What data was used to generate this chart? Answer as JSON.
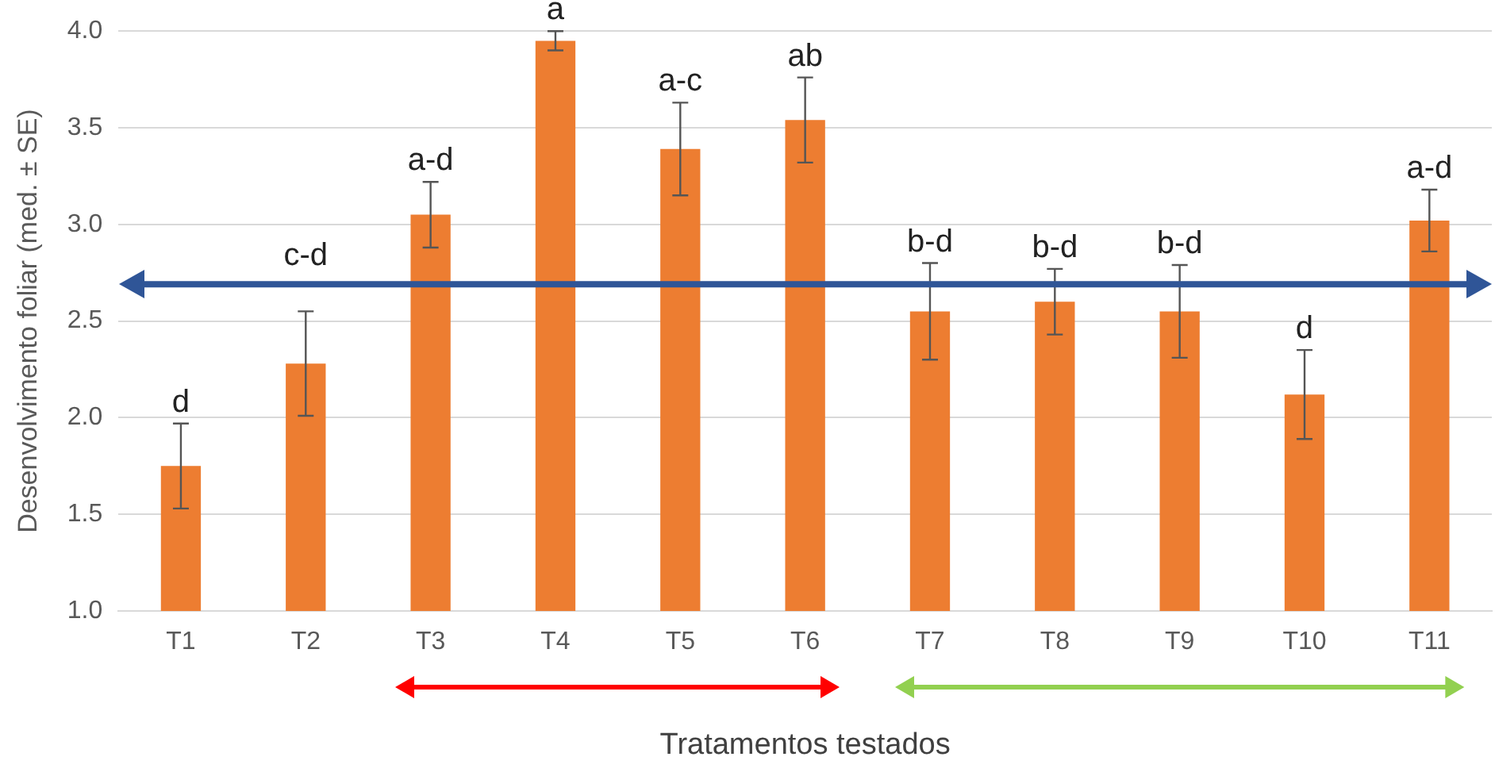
{
  "chart_data": {
    "type": "bar",
    "xlabel": "Tratamentos testados",
    "ylabel": "Desenvolvimento foliar (med. ± SE)",
    "categories": [
      "T1",
      "T2",
      "T3",
      "T4",
      "T5",
      "T6",
      "T7",
      "T8",
      "T9",
      "T10",
      "T11"
    ],
    "values": [
      1.75,
      2.28,
      3.05,
      3.95,
      3.39,
      3.54,
      2.55,
      2.6,
      2.55,
      2.12,
      3.02
    ],
    "errors": [
      0.22,
      0.27,
      0.17,
      0.05,
      0.24,
      0.22,
      0.25,
      0.17,
      0.24,
      0.23,
      0.16
    ],
    "color": "#ed7d31",
    "ylim": [
      1,
      4
    ],
    "yticks": [
      {
        "value": 1,
        "label": "1.0"
      },
      1.5,
      {
        "value": 2,
        "label": "2.0"
      },
      2.5,
      {
        "value": 3,
        "label": "3.0"
      },
      3.5,
      {
        "value": 4,
        "label": "4.0"
      }
    ],
    "grid": "y",
    "legend": false,
    "ref_lines": [
      {
        "axis": "y",
        "value": 2.69,
        "color": "#2f5597"
      }
    ],
    "annotations": [
      {
        "text": "d",
        "x": "T1",
        "y": 1.97
      },
      {
        "text": "c-d",
        "x": "T2",
        "y": 2.73
      },
      {
        "text": "a-d",
        "x": "T3",
        "y": 3.22
      },
      {
        "text": "a",
        "x": "T4",
        "y": 4.0
      },
      {
        "text": "a-c",
        "x": "T5",
        "y": 3.63
      },
      {
        "text": "ab",
        "x": "T6",
        "y": 3.76
      },
      {
        "text": "b-d",
        "x": "T7",
        "y": 2.8
      },
      {
        "text": "b-d",
        "x": "T8",
        "y": 2.77
      },
      {
        "text": "b-d",
        "x": "T9",
        "y": 2.79
      },
      {
        "text": "d",
        "x": "T10",
        "y": 2.35
      },
      {
        "text": "a-d",
        "x": "T11",
        "y": 3.18
      }
    ]
  }
}
